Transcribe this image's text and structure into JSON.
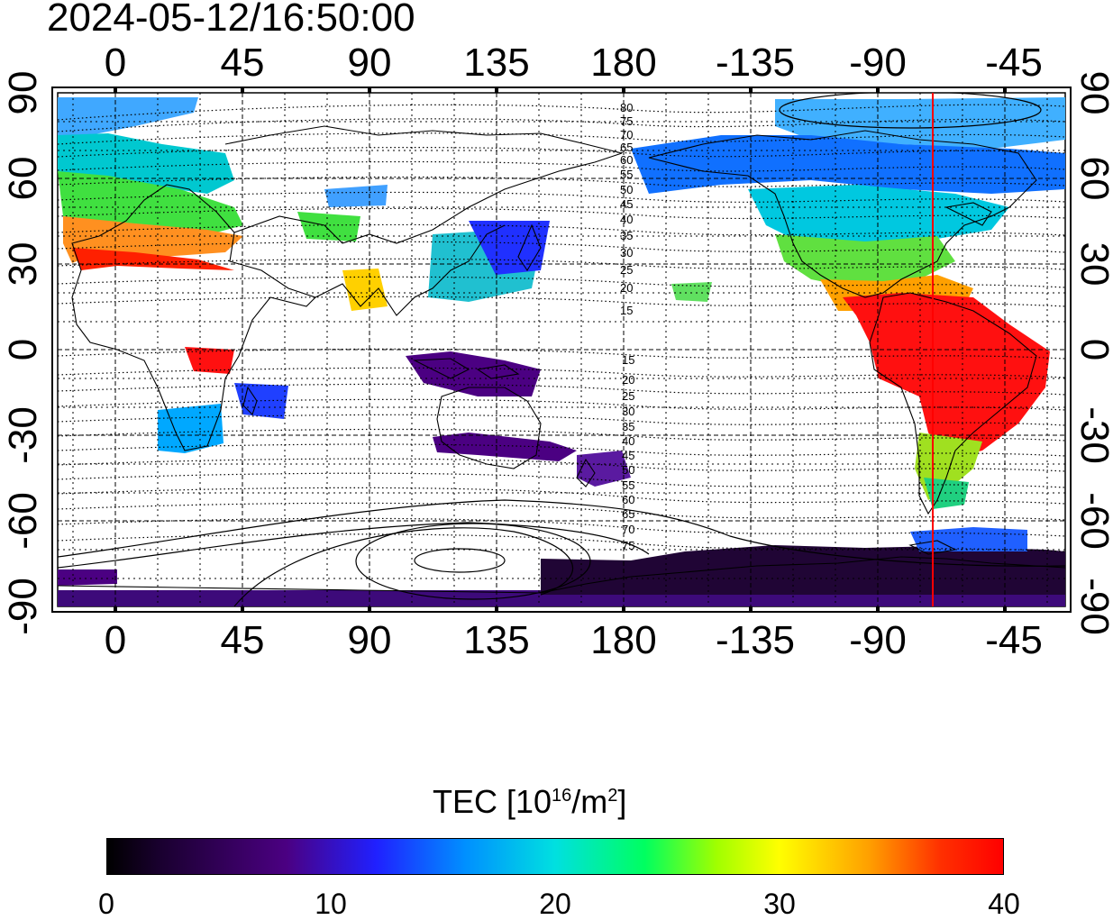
{
  "timestamp": "2024-05-12/16:50:00",
  "colorbar": {
    "label_prefix": "TEC  [10",
    "label_exp": "16",
    "label_mid": "/m",
    "label_exp2": "2",
    "label_suffix": "]",
    "ticks": [
      "0",
      "10",
      "20",
      "30",
      "40"
    ],
    "colors": [
      "#000000",
      "#4b0082",
      "#2020ff",
      "#00e0e0",
      "#00ff60",
      "#ffff00",
      "#ff0000"
    ]
  },
  "map": {
    "lon_ticks": [
      "0",
      "45",
      "90",
      "135",
      "180",
      "-135",
      "-90",
      "-45"
    ],
    "lat_ticks": [
      "90",
      "60",
      "30",
      "0",
      "-30",
      "-60",
      "-90"
    ],
    "contour_labels_north": [
      "80",
      "75",
      "70",
      "65",
      "60",
      "55",
      "50",
      "45",
      "40",
      "35",
      "30",
      "25",
      "20",
      "15"
    ],
    "contour_labels_south": [
      "15",
      "20",
      "25",
      "30",
      "35",
      "40",
      "45",
      "50",
      "55",
      "60",
      "65",
      "70",
      "75"
    ],
    "terminator_longitude": -78
  }
}
